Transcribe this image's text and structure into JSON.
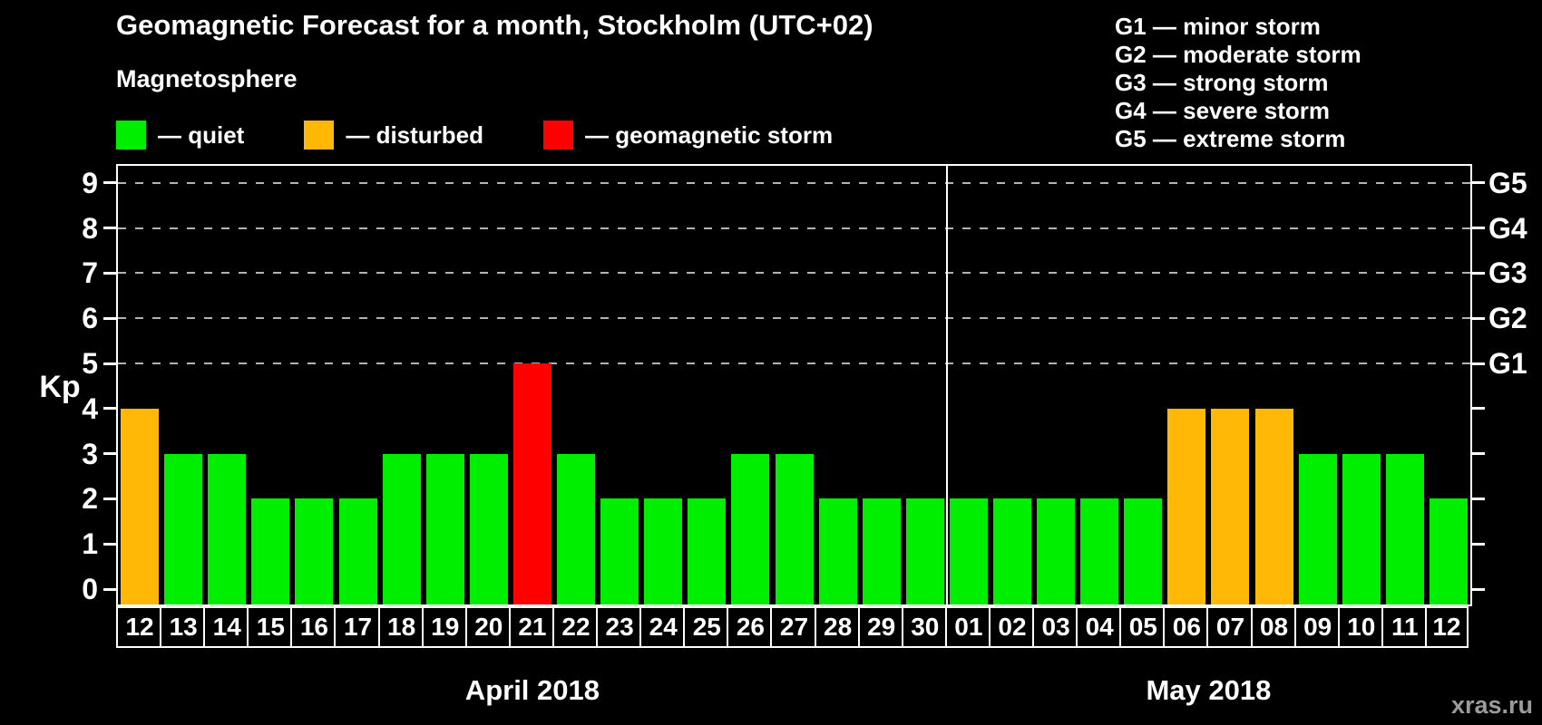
{
  "header": {
    "title": "Geomagnetic Forecast for a month, Stockholm (UTC+02)",
    "subtitle": "Magnetosphere"
  },
  "legend": {
    "items": [
      {
        "key": "quiet",
        "label": "— quiet"
      },
      {
        "key": "disturbed",
        "label": "— disturbed"
      },
      {
        "key": "storm",
        "label": "— geomagnetic storm"
      }
    ]
  },
  "g_legend": {
    "lines": [
      "G1 — minor storm",
      "G2 — moderate storm",
      "G3 — strong storm",
      "G4 — severe storm",
      "G5 — extreme storm"
    ]
  },
  "watermark": "xras.ru",
  "chart_data": {
    "type": "bar",
    "title": "Geomagnetic Forecast for a month, Stockholm (UTC+02)",
    "ylabel": "Kp",
    "ylim": [
      0,
      9
    ],
    "yticks": [
      0,
      1,
      2,
      3,
      4,
      5,
      6,
      7,
      8,
      9
    ],
    "gridlines_at": [
      5,
      6,
      7,
      8,
      9
    ],
    "grid": "dashed horizontal at G-storm levels only",
    "legend_position": "top",
    "right_axis_labels": [
      {
        "value": 5,
        "label": "G1"
      },
      {
        "value": 6,
        "label": "G2"
      },
      {
        "value": 7,
        "label": "G3"
      },
      {
        "value": 8,
        "label": "G4"
      },
      {
        "value": 9,
        "label": "G5"
      }
    ],
    "months": [
      {
        "label": "April 2018",
        "days": 19
      },
      {
        "label": "May 2018",
        "days": 12
      }
    ],
    "categories": [
      "12",
      "13",
      "14",
      "15",
      "16",
      "17",
      "18",
      "19",
      "20",
      "21",
      "22",
      "23",
      "24",
      "25",
      "26",
      "27",
      "28",
      "29",
      "30",
      "01",
      "02",
      "03",
      "04",
      "05",
      "06",
      "07",
      "08",
      "09",
      "10",
      "11",
      "12"
    ],
    "values": [
      4,
      3,
      3,
      2,
      2,
      2,
      3,
      3,
      3,
      5,
      3,
      2,
      2,
      2,
      3,
      3,
      2,
      2,
      2,
      2,
      2,
      2,
      2,
      2,
      4,
      4,
      4,
      3,
      3,
      3,
      2
    ],
    "status": [
      "disturbed",
      "quiet",
      "quiet",
      "quiet",
      "quiet",
      "quiet",
      "quiet",
      "quiet",
      "quiet",
      "storm",
      "quiet",
      "quiet",
      "quiet",
      "quiet",
      "quiet",
      "quiet",
      "quiet",
      "quiet",
      "quiet",
      "quiet",
      "quiet",
      "quiet",
      "quiet",
      "quiet",
      "disturbed",
      "disturbed",
      "disturbed",
      "quiet",
      "quiet",
      "quiet",
      "quiet"
    ],
    "colors": {
      "quiet": "#00ee00",
      "disturbed": "#ffb806",
      "storm": "#ff0000",
      "axis": "#ffffff",
      "gridline": "#b3b3b3",
      "background": "#000000",
      "watermark": "#9b9b9b"
    }
  }
}
